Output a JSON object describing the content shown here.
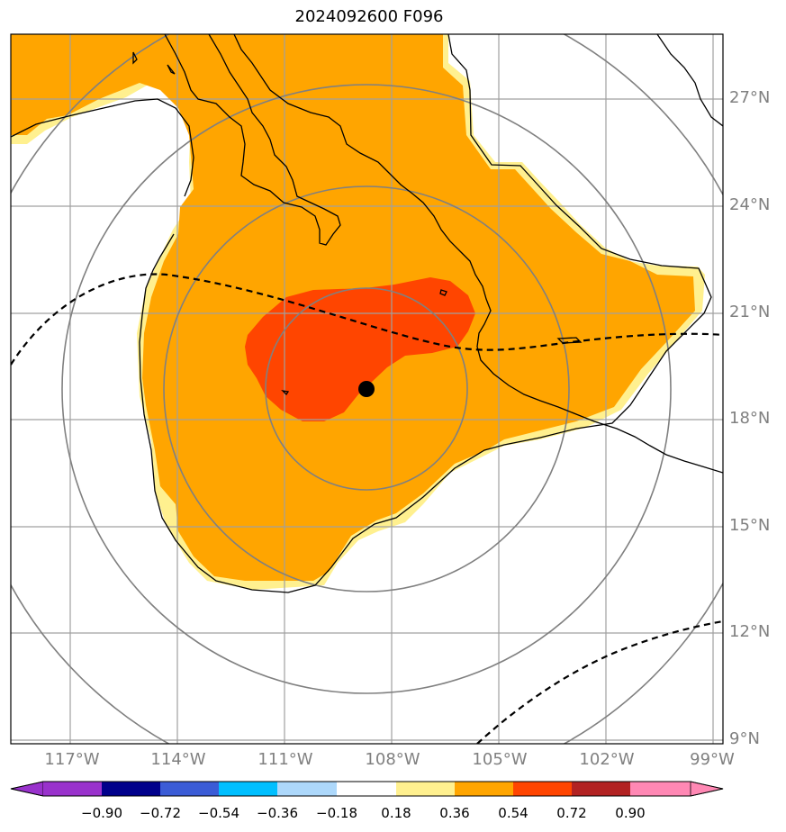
{
  "title": "2024092600 F096",
  "map": {
    "lat_labels": [
      "27°N",
      "24°N",
      "21°N",
      "18°N",
      "15°N",
      "12°N",
      "9°N"
    ],
    "lon_labels": [
      "117°W",
      "114°W",
      "111°W",
      "108°W",
      "105°W",
      "102°W",
      "99°W"
    ],
    "center": {
      "lat": 18.8,
      "lon": 107.8
    },
    "fill_colors": {
      "light": "#fff08f",
      "orange": "#ffa500",
      "red": "#ff4500"
    }
  },
  "colorbar": {
    "labels": [
      "−0.90",
      "−0.72",
      "−0.54",
      "−0.36",
      "−0.18",
      "0.18",
      "0.36",
      "0.54",
      "0.72",
      "0.90"
    ],
    "colors": [
      "#9932cc",
      "#00008b",
      "#3b5cd6",
      "#00bfff",
      "#add8fb",
      "#ffffff",
      "#fff08f",
      "#ffa500",
      "#ff4500",
      "#b22222",
      "#ff88b4"
    ]
  }
}
